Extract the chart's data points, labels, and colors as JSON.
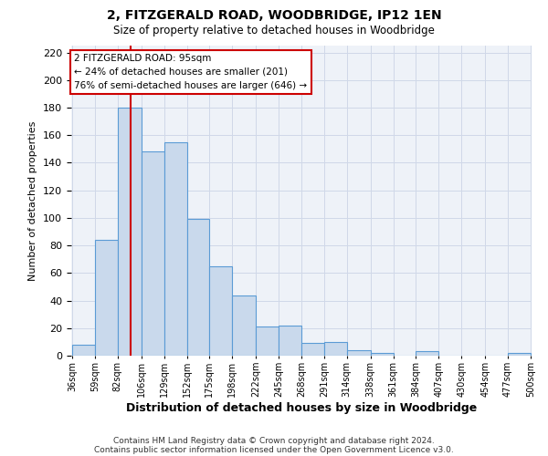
{
  "title": "2, FITZGERALD ROAD, WOODBRIDGE, IP12 1EN",
  "subtitle": "Size of property relative to detached houses in Woodbridge",
  "xlabel": "Distribution of detached houses by size in Woodbridge",
  "ylabel": "Number of detached properties",
  "footer_line1": "Contains HM Land Registry data © Crown copyright and database right 2024.",
  "footer_line2": "Contains public sector information licensed under the Open Government Licence v3.0.",
  "bin_edges": [
    36,
    59,
    82,
    106,
    129,
    152,
    175,
    198,
    222,
    245,
    268,
    291,
    314,
    338,
    361,
    384,
    407,
    430,
    454,
    477,
    500
  ],
  "bin_heights": [
    8,
    84,
    180,
    148,
    155,
    99,
    65,
    44,
    21,
    22,
    9,
    10,
    4,
    2,
    0,
    3,
    0,
    0,
    0,
    2
  ],
  "bar_facecolor": "#c9d9ec",
  "bar_edgecolor": "#5b9bd5",
  "grid_color": "#d0d8e8",
  "bg_color": "#eef2f8",
  "red_line_x": 95,
  "red_line_color": "#cc0000",
  "annotation_text_line1": "2 FITZGERALD ROAD: 95sqm",
  "annotation_text_line2": "← 24% of detached houses are smaller (201)",
  "annotation_text_line3": "76% of semi-detached houses are larger (646) →",
  "ylim": [
    0,
    225
  ],
  "yticks": [
    0,
    20,
    40,
    60,
    80,
    100,
    120,
    140,
    160,
    180,
    200,
    220
  ],
  "tick_labels": [
    "36sqm",
    "59sqm",
    "82sqm",
    "106sqm",
    "129sqm",
    "152sqm",
    "175sqm",
    "198sqm",
    "222sqm",
    "245sqm",
    "268sqm",
    "291sqm",
    "314sqm",
    "338sqm",
    "361sqm",
    "384sqm",
    "407sqm",
    "430sqm",
    "454sqm",
    "477sqm",
    "500sqm"
  ]
}
